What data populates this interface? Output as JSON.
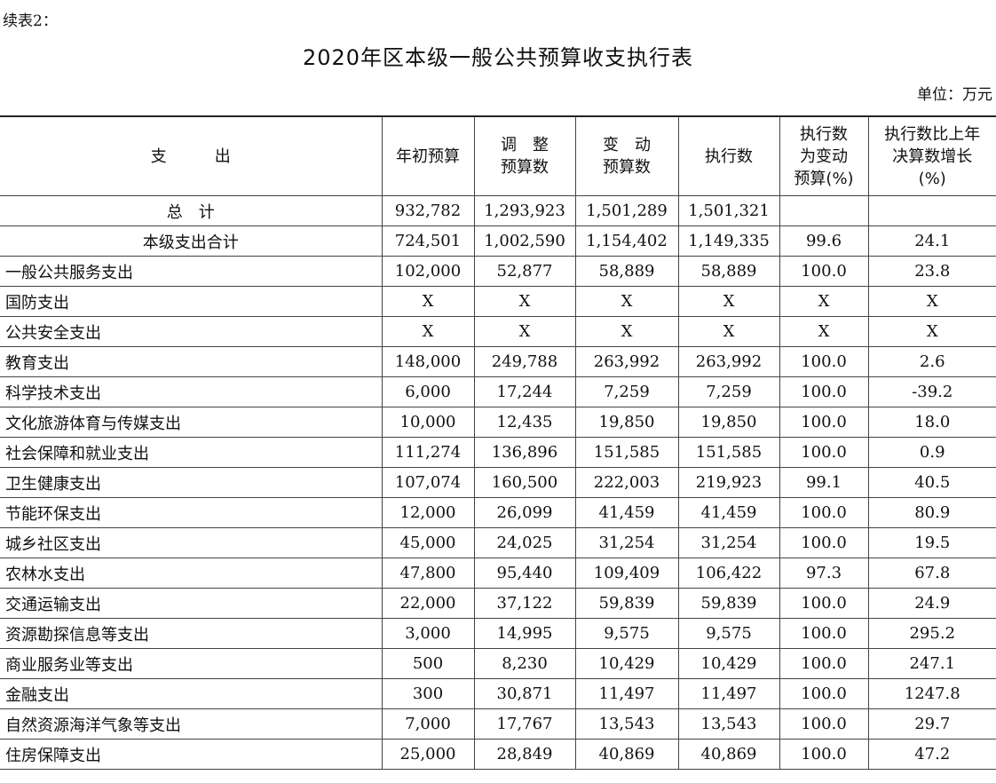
{
  "continuation": "续表2：",
  "title": "2020年区本级一般公共预算收支执行表",
  "unit": "单位：万元",
  "columns": [
    [
      "支　　　出"
    ],
    [
      "年初预算"
    ],
    [
      "调　整",
      "预算数"
    ],
    [
      "变　动",
      "预算数"
    ],
    [
      "执行数"
    ],
    [
      "执行数",
      "为变动",
      "预算(%)"
    ],
    [
      "执行数比上年",
      "决算数增长",
      "(%)"
    ]
  ],
  "rows": [
    {
      "name": "总　计",
      "summary": true,
      "values": [
        "932,782",
        "1,293,923",
        "1,501,289",
        "1,501,321",
        "",
        ""
      ]
    },
    {
      "name": "本级支出合计",
      "summary": true,
      "values": [
        "724,501",
        "1,002,590",
        "1,154,402",
        "1,149,335",
        "99.6",
        "24.1"
      ]
    },
    {
      "name": "一般公共服务支出",
      "values": [
        "102,000",
        "52,877",
        "58,889",
        "58,889",
        "100.0",
        "23.8"
      ]
    },
    {
      "name": "国防支出",
      "values": [
        "X",
        "X",
        "X",
        "X",
        "X",
        "X"
      ]
    },
    {
      "name": "公共安全支出",
      "values": [
        "X",
        "X",
        "X",
        "X",
        "X",
        "X"
      ]
    },
    {
      "name": "教育支出",
      "values": [
        "148,000",
        "249,788",
        "263,992",
        "263,992",
        "100.0",
        "2.6"
      ]
    },
    {
      "name": "科学技术支出",
      "values": [
        "6,000",
        "17,244",
        "7,259",
        "7,259",
        "100.0",
        "-39.2"
      ]
    },
    {
      "name": "文化旅游体育与传媒支出",
      "values": [
        "10,000",
        "12,435",
        "19,850",
        "19,850",
        "100.0",
        "18.0"
      ]
    },
    {
      "name": "社会保障和就业支出",
      "values": [
        "111,274",
        "136,896",
        "151,585",
        "151,585",
        "100.0",
        "0.9"
      ]
    },
    {
      "name": "卫生健康支出",
      "values": [
        "107,074",
        "160,500",
        "222,003",
        "219,923",
        "99.1",
        "40.5"
      ]
    },
    {
      "name": "节能环保支出",
      "values": [
        "12,000",
        "26,099",
        "41,459",
        "41,459",
        "100.0",
        "80.9"
      ]
    },
    {
      "name": "城乡社区支出",
      "values": [
        "45,000",
        "24,025",
        "31,254",
        "31,254",
        "100.0",
        "19.5"
      ]
    },
    {
      "name": "农林水支出",
      "values": [
        "47,800",
        "95,440",
        "109,409",
        "106,422",
        "97.3",
        "67.8"
      ]
    },
    {
      "name": "交通运输支出",
      "values": [
        "22,000",
        "37,122",
        "59,839",
        "59,839",
        "100.0",
        "24.9"
      ]
    },
    {
      "name": "资源勘探信息等支出",
      "values": [
        "3,000",
        "14,995",
        "9,575",
        "9,575",
        "100.0",
        "295.2"
      ]
    },
    {
      "name": "商业服务业等支出",
      "values": [
        "500",
        "8,230",
        "10,429",
        "10,429",
        "100.0",
        "247.1"
      ]
    },
    {
      "name": "金融支出",
      "values": [
        "300",
        "30,871",
        "11,497",
        "11,497",
        "100.0",
        "1247.8"
      ]
    },
    {
      "name": "自然资源海洋气象等支出",
      "values": [
        "7,000",
        "17,767",
        "13,543",
        "13,543",
        "100.0",
        "29.7"
      ]
    },
    {
      "name": "住房保障支出",
      "values": [
        "25,000",
        "28,849",
        "40,869",
        "40,869",
        "100.0",
        "47.2"
      ]
    }
  ]
}
